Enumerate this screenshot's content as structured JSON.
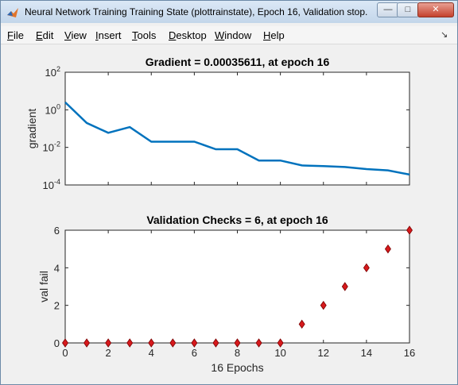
{
  "window": {
    "title": "Neural Network Training Training State (plottrainstate), Epoch 16, Validation stop.",
    "icon": "matlab-icon",
    "controls": {
      "minimize": "—",
      "maximize": "□",
      "close": "✕"
    }
  },
  "menu": {
    "items": [
      {
        "label": "File"
      },
      {
        "label": "Edit"
      },
      {
        "label": "View"
      },
      {
        "label": "Insert"
      },
      {
        "label": "Tools"
      },
      {
        "label": "Desktop"
      },
      {
        "label": "Window"
      },
      {
        "label": "Help"
      }
    ],
    "dock_icon": "↘"
  },
  "chart_data": [
    {
      "type": "line",
      "title": "Gradient = 0.00035611, at epoch 16",
      "ylabel": "gradient",
      "xlabel": "",
      "yscale": "log",
      "ylim": [
        0.0001,
        100
      ],
      "xlim": [
        0,
        16
      ],
      "yticks": [
        {
          "base": "10",
          "exp": "2"
        },
        {
          "base": "10",
          "exp": "0"
        },
        {
          "base": "10",
          "exp": "-2"
        },
        {
          "base": "10",
          "exp": "-4"
        }
      ],
      "x": [
        0,
        1,
        2,
        3,
        4,
        5,
        6,
        7,
        8,
        9,
        10,
        11,
        12,
        13,
        14,
        15,
        16
      ],
      "values": [
        2.5,
        0.2,
        0.06,
        0.12,
        0.02,
        0.02,
        0.02,
        0.008,
        0.008,
        0.002,
        0.002,
        0.0011,
        0.001,
        0.0009,
        0.0007,
        0.0006,
        0.00035611
      ],
      "color": "#0072bd",
      "grid": false
    },
    {
      "type": "scatter",
      "title": "Validation Checks = 6, at epoch 16",
      "ylabel": "val fail",
      "xlabel": "16 Epochs",
      "xlim": [
        0,
        16
      ],
      "ylim": [
        0,
        6
      ],
      "xticks": [
        "0",
        "2",
        "4",
        "6",
        "8",
        "10",
        "12",
        "14",
        "16"
      ],
      "yticks": [
        "0",
        "2",
        "4",
        "6"
      ],
      "x": [
        0,
        1,
        2,
        3,
        4,
        5,
        6,
        7,
        8,
        9,
        10,
        11,
        12,
        13,
        14,
        15,
        16
      ],
      "values": [
        0,
        0,
        0,
        0,
        0,
        0,
        0,
        0,
        0,
        0,
        0,
        1,
        2,
        3,
        4,
        5,
        6
      ],
      "marker": "diamond",
      "color": "#d7191c",
      "grid": false
    }
  ]
}
